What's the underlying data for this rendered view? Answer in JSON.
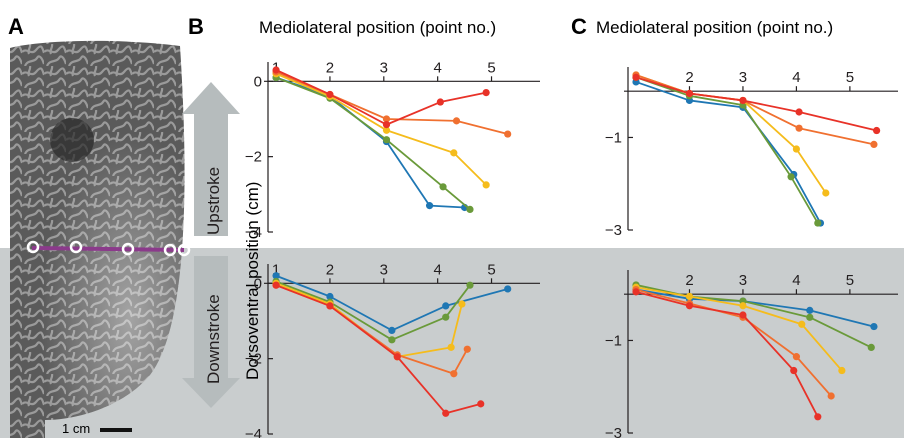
{
  "panels": {
    "a": "A",
    "b": "B",
    "c": "C"
  },
  "titles": {
    "b": "Mediolateral position (point no.)",
    "c": "Mediolateral position (point no.)"
  },
  "ylabel": "Dorsoventral position (cm)",
  "arrows": {
    "up": "Upstroke",
    "down": "Downstroke"
  },
  "scalebar": "1 cm",
  "colors": {
    "series": [
      "#1f77b4",
      "#6a9a3a",
      "#f5bc1c",
      "#f07030",
      "#e83228"
    ],
    "panel_bg": "#c9cdce",
    "arrow": "#b6bcbd",
    "chordline": "#8b3a8b"
  },
  "chart_data": [
    {
      "id": "B-upstroke",
      "type": "line",
      "xticks": [
        "1",
        "2",
        "3",
        "4",
        "5"
      ],
      "yticks": [
        "0",
        "−2",
        "−4"
      ],
      "ylim": [
        -4,
        0.3
      ],
      "series": [
        {
          "color": "blue",
          "x": [
            1,
            2,
            3.05,
            3.85,
            4.5
          ],
          "y": [
            0.1,
            -0.4,
            -1.6,
            -3.3,
            -3.35
          ]
        },
        {
          "color": "green",
          "x": [
            1,
            2,
            3.05,
            4.1,
            4.6
          ],
          "y": [
            0.1,
            -0.45,
            -1.55,
            -2.8,
            -3.4
          ]
        },
        {
          "color": "yellow",
          "x": [
            1,
            2,
            3.05,
            4.3,
            4.9
          ],
          "y": [
            0.2,
            -0.4,
            -1.3,
            -1.9,
            -2.75
          ]
        },
        {
          "color": "orange",
          "x": [
            1,
            2,
            3.05,
            4.35,
            5.3
          ],
          "y": [
            0.25,
            -0.35,
            -1.0,
            -1.05,
            -1.4
          ]
        },
        {
          "color": "red",
          "x": [
            1,
            2,
            3.05,
            4.05,
            4.9
          ],
          "y": [
            0.3,
            -0.35,
            -1.15,
            -0.55,
            -0.3
          ]
        }
      ]
    },
    {
      "id": "B-downstroke",
      "type": "line",
      "xticks": [
        "1",
        "2",
        "3",
        "4",
        "5"
      ],
      "yticks": [
        "0",
        "−2",
        "−4"
      ],
      "ylim": [
        -4,
        0.3
      ],
      "series": [
        {
          "color": "blue",
          "x": [
            1,
            2,
            3.15,
            4.15,
            5.3
          ],
          "y": [
            0.2,
            -0.35,
            -1.25,
            -0.6,
            -0.15
          ]
        },
        {
          "color": "green",
          "x": [
            1,
            2,
            3.15,
            4.15,
            4.6
          ],
          "y": [
            0.05,
            -0.5,
            -1.5,
            -0.9,
            -0.05
          ]
        },
        {
          "color": "yellow",
          "x": [
            1,
            2,
            3.25,
            4.25,
            4.45
          ],
          "y": [
            0.0,
            -0.55,
            -1.95,
            -1.7,
            -0.55
          ]
        },
        {
          "color": "orange",
          "x": [
            1,
            2,
            3.25,
            4.3,
            4.55
          ],
          "y": [
            -0.05,
            -0.6,
            -1.9,
            -2.4,
            -1.75
          ]
        },
        {
          "color": "red",
          "x": [
            1,
            2,
            3.25,
            4.15,
            4.8
          ],
          "y": [
            -0.05,
            -0.6,
            -1.95,
            -3.45,
            -3.2
          ]
        }
      ]
    },
    {
      "id": "C-upstroke",
      "type": "line",
      "xticks": [
        "2",
        "3",
        "4",
        "5"
      ],
      "yticks": [
        "−1",
        "−3"
      ],
      "ylim": [
        -3,
        0.35
      ],
      "series": [
        {
          "color": "blue",
          "x": [
            1,
            2,
            3,
            3.95,
            4.45
          ],
          "y": [
            0.2,
            -0.2,
            -0.35,
            -1.8,
            -2.85
          ]
        },
        {
          "color": "green",
          "x": [
            1,
            2,
            3,
            3.9,
            4.4
          ],
          "y": [
            0.3,
            -0.1,
            -0.3,
            -1.85,
            -2.85
          ]
        },
        {
          "color": "yellow",
          "x": [
            1,
            2,
            3,
            4,
            4.55
          ],
          "y": [
            0.35,
            -0.05,
            -0.2,
            -1.25,
            -2.2
          ]
        },
        {
          "color": "orange",
          "x": [
            1,
            2,
            3,
            4.05,
            5.45
          ],
          "y": [
            0.35,
            -0.05,
            -0.2,
            -0.8,
            -1.15
          ]
        },
        {
          "color": "red",
          "x": [
            1,
            2,
            3,
            4.05,
            5.5
          ],
          "y": [
            0.3,
            -0.05,
            -0.2,
            -0.45,
            -0.85
          ]
        }
      ]
    },
    {
      "id": "C-downstroke",
      "type": "line",
      "xticks": [
        "2",
        "3",
        "4",
        "5"
      ],
      "yticks": [
        "−1",
        "−3"
      ],
      "ylim": [
        -3,
        0.35
      ],
      "series": [
        {
          "color": "blue",
          "x": [
            1,
            2,
            3,
            4.25,
            5.45
          ],
          "y": [
            0.1,
            -0.1,
            -0.15,
            -0.35,
            -0.7
          ]
        },
        {
          "color": "green",
          "x": [
            1,
            2,
            3,
            4.25,
            5.4
          ],
          "y": [
            0.2,
            -0.05,
            -0.15,
            -0.5,
            -1.15
          ]
        },
        {
          "color": "yellow",
          "x": [
            1,
            2,
            3,
            4.1,
            4.85
          ],
          "y": [
            0.15,
            -0.05,
            -0.25,
            -0.65,
            -1.65
          ]
        },
        {
          "color": "orange",
          "x": [
            1,
            2,
            3,
            4.0,
            4.65
          ],
          "y": [
            0.1,
            -0.2,
            -0.5,
            -1.35,
            -2.2
          ]
        },
        {
          "color": "red",
          "x": [
            1,
            2,
            3,
            3.95,
            4.4
          ],
          "y": [
            0.05,
            -0.25,
            -0.45,
            -1.65,
            -2.65
          ]
        }
      ]
    }
  ]
}
